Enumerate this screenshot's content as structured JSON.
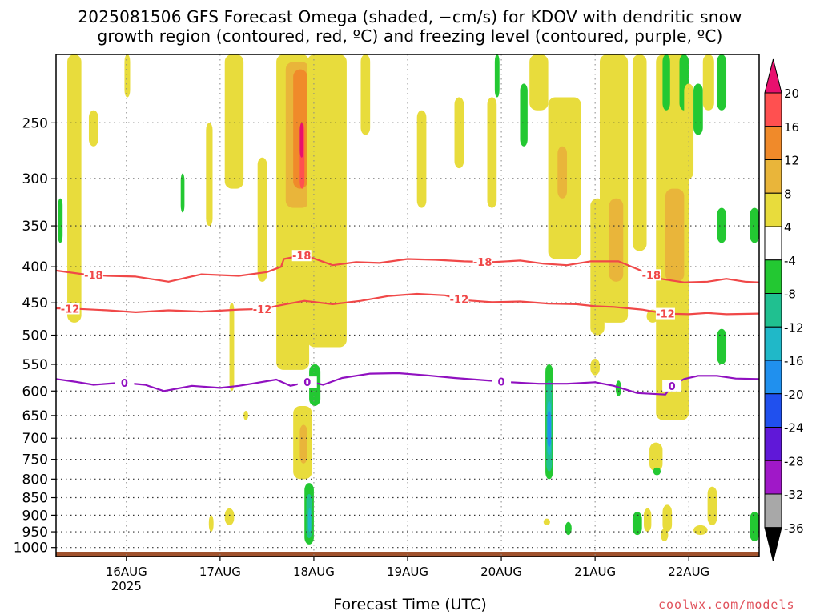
{
  "title_line1": "2025081506 GFS Forecast Omega (shaded, −cm/s) for KDOV with dendritic snow",
  "title_line2": "growth region (contoured, red, ºC) and freezing level (contoured, purple, ºC)",
  "credit": "coolwx.com/models",
  "chart_data": {
    "type": "heatmap",
    "title": "2025081506 GFS Forecast Omega (shaded, −cm/s) for KDOV with dendritic snow growth region (contoured, red, ºC) and freezing level (contoured, purple, ºC)",
    "xlabel": "Forecast Time (UTC)",
    "ylabel": "",
    "x_ticks": [
      {
        "day": 16,
        "label": "16AUG",
        "sublabel": "2025"
      },
      {
        "day": 17,
        "label": "17AUG",
        "sublabel": ""
      },
      {
        "day": 18,
        "label": "18AUG",
        "sublabel": ""
      },
      {
        "day": 19,
        "label": "19AUG",
        "sublabel": ""
      },
      {
        "day": 20,
        "label": "20AUG",
        "sublabel": ""
      },
      {
        "day": 21,
        "label": "21AUG",
        "sublabel": ""
      },
      {
        "day": 22,
        "label": "22AUG",
        "sublabel": ""
      }
    ],
    "x_range_days": [
      15.25,
      22.75
    ],
    "y_axis": "pressure (hPa), log scale, inverted",
    "y_ticks": [
      250,
      300,
      350,
      400,
      450,
      500,
      550,
      600,
      650,
      700,
      750,
      800,
      850,
      900,
      950,
      1000
    ],
    "y_range": [
      200,
      1030
    ],
    "grid": "dotted at each pressure tick and each day",
    "colorbar": {
      "labels": [
        "20",
        "16",
        "12",
        "8",
        "4",
        "-4",
        "-8",
        "-12",
        "-16",
        "-20",
        "-24",
        "-28",
        "-32",
        "-36"
      ],
      "colors": [
        "#ff5050",
        "#f08a2a",
        "#e9b53a",
        "#e8dc3c",
        "#ffffff",
        "#23c832",
        "#20c090",
        "#20b8c8",
        "#2090ee",
        "#2050ee",
        "#6018d8",
        "#a018c8",
        "#a8a8a8"
      ],
      "top_arrow_color": "#e8106e",
      "bottom_arrow_color": "#000000"
    },
    "omega_features": [
      {
        "day0": 15.37,
        "day1": 15.52,
        "p0": 200,
        "p1": 480,
        "value": 5
      },
      {
        "day0": 15.27,
        "day1": 15.32,
        "p0": 320,
        "p1": 370,
        "value": -6
      },
      {
        "day0": 15.6,
        "day1": 15.7,
        "p0": 240,
        "p1": 270,
        "value": 5
      },
      {
        "day0": 15.98,
        "day1": 16.04,
        "p0": 200,
        "p1": 230,
        "value": 5
      },
      {
        "day0": 16.58,
        "day1": 16.62,
        "p0": 295,
        "p1": 335,
        "value": -6
      },
      {
        "day0": 16.85,
        "day1": 16.92,
        "p0": 250,
        "p1": 350,
        "value": 5
      },
      {
        "day0": 17.05,
        "day1": 17.25,
        "p0": 200,
        "p1": 310,
        "value": 5
      },
      {
        "day0": 17.1,
        "day1": 17.15,
        "p0": 450,
        "p1": 600,
        "value": 5
      },
      {
        "day0": 17.05,
        "day1": 17.15,
        "p0": 880,
        "p1": 930,
        "value": 5
      },
      {
        "day0": 16.88,
        "day1": 16.93,
        "p0": 900,
        "p1": 950,
        "value": 5
      },
      {
        "day0": 17.4,
        "day1": 17.5,
        "p0": 280,
        "p1": 420,
        "value": 5
      },
      {
        "day0": 17.6,
        "day1": 17.95,
        "p0": 200,
        "p1": 560,
        "value": 5
      },
      {
        "day0": 17.7,
        "day1": 17.95,
        "p0": 205,
        "p1": 330,
        "value": 9
      },
      {
        "day0": 17.78,
        "day1": 17.93,
        "p0": 210,
        "p1": 310,
        "value": 13
      },
      {
        "day0": 17.85,
        "day1": 17.9,
        "p0": 250,
        "p1": 310,
        "value": 17
      },
      {
        "day0": 17.85,
        "day1": 17.89,
        "p0": 250,
        "p1": 280,
        "value": 21
      },
      {
        "day0": 17.93,
        "day1": 18.35,
        "p0": 200,
        "p1": 520,
        "value": 5
      },
      {
        "day0": 17.95,
        "day1": 18.07,
        "p0": 550,
        "p1": 630,
        "value": -6
      },
      {
        "day0": 17.78,
        "day1": 17.98,
        "p0": 630,
        "p1": 800,
        "value": 5
      },
      {
        "day0": 17.85,
        "day1": 17.93,
        "p0": 670,
        "p1": 760,
        "value": 9
      },
      {
        "day0": 17.9,
        "day1": 18.0,
        "p0": 810,
        "p1": 990,
        "value": -6
      },
      {
        "day0": 17.92,
        "day1": 17.98,
        "p0": 840,
        "p1": 970,
        "value": -10
      },
      {
        "day0": 17.94,
        "day1": 17.97,
        "p0": 880,
        "p1": 950,
        "value": -14
      },
      {
        "day0": 18.5,
        "day1": 18.6,
        "p0": 200,
        "p1": 260,
        "value": 5
      },
      {
        "day0": 19.1,
        "day1": 19.2,
        "p0": 240,
        "p1": 330,
        "value": 5
      },
      {
        "day0": 19.5,
        "day1": 19.6,
        "p0": 230,
        "p1": 290,
        "value": 5
      },
      {
        "day0": 19.85,
        "day1": 19.95,
        "p0": 230,
        "p1": 330,
        "value": 5
      },
      {
        "day0": 19.93,
        "day1": 19.98,
        "p0": 200,
        "p1": 230,
        "value": -6
      },
      {
        "day0": 20.2,
        "day1": 20.28,
        "p0": 220,
        "p1": 270,
        "value": -6
      },
      {
        "day0": 20.3,
        "day1": 20.5,
        "p0": 200,
        "p1": 240,
        "value": 5
      },
      {
        "day0": 20.47,
        "day1": 20.55,
        "p0": 550,
        "p1": 800,
        "value": -6
      },
      {
        "day0": 20.48,
        "day1": 20.54,
        "p0": 580,
        "p1": 780,
        "value": -10
      },
      {
        "day0": 20.49,
        "day1": 20.53,
        "p0": 620,
        "p1": 740,
        "value": -14
      },
      {
        "day0": 20.49,
        "day1": 20.53,
        "p0": 640,
        "p1": 720,
        "value": -18
      },
      {
        "day0": 20.45,
        "day1": 20.52,
        "p0": 910,
        "p1": 930,
        "value": 5
      },
      {
        "day0": 20.68,
        "day1": 20.75,
        "p0": 920,
        "p1": 960,
        "value": -6
      },
      {
        "day0": 20.5,
        "day1": 20.85,
        "p0": 230,
        "p1": 390,
        "value": 5
      },
      {
        "day0": 20.6,
        "day1": 20.7,
        "p0": 270,
        "p1": 320,
        "value": 9
      },
      {
        "day0": 20.95,
        "day1": 21.1,
        "p0": 320,
        "p1": 500,
        "value": 5
      },
      {
        "day0": 20.95,
        "day1": 21.05,
        "p0": 540,
        "p1": 570,
        "value": 5
      },
      {
        "day0": 21.05,
        "day1": 21.35,
        "p0": 200,
        "p1": 480,
        "value": 5
      },
      {
        "day0": 21.15,
        "day1": 21.3,
        "p0": 320,
        "p1": 420,
        "value": 9
      },
      {
        "day0": 21.22,
        "day1": 21.28,
        "p0": 580,
        "p1": 610,
        "value": -6
      },
      {
        "day0": 21.4,
        "day1": 21.55,
        "p0": 200,
        "p1": 380,
        "value": 5
      },
      {
        "day0": 21.55,
        "day1": 21.68,
        "p0": 460,
        "p1": 480,
        "value": 5
      },
      {
        "day0": 21.58,
        "day1": 21.72,
        "p0": 710,
        "p1": 780,
        "value": 5
      },
      {
        "day0": 21.62,
        "day1": 21.7,
        "p0": 770,
        "p1": 790,
        "value": -6
      },
      {
        "day0": 21.4,
        "day1": 21.5,
        "p0": 890,
        "p1": 960,
        "value": -6
      },
      {
        "day0": 21.52,
        "day1": 21.6,
        "p0": 880,
        "p1": 950,
        "value": 5
      },
      {
        "day0": 21.65,
        "day1": 22.0,
        "p0": 200,
        "p1": 660,
        "value": 5
      },
      {
        "day0": 21.75,
        "day1": 21.95,
        "p0": 310,
        "p1": 420,
        "value": 9
      },
      {
        "day0": 21.72,
        "day1": 21.8,
        "p0": 200,
        "p1": 240,
        "value": -6
      },
      {
        "day0": 21.9,
        "day1": 22.0,
        "p0": 200,
        "p1": 240,
        "value": -6
      },
      {
        "day0": 21.95,
        "day1": 22.05,
        "p0": 220,
        "p1": 300,
        "value": 5
      },
      {
        "day0": 22.05,
        "day1": 22.15,
        "p0": 220,
        "p1": 260,
        "value": -6
      },
      {
        "day0": 22.15,
        "day1": 22.27,
        "p0": 200,
        "p1": 240,
        "value": 5
      },
      {
        "day0": 22.3,
        "day1": 22.4,
        "p0": 200,
        "p1": 240,
        "value": -6
      },
      {
        "day0": 22.3,
        "day1": 22.4,
        "p0": 330,
        "p1": 370,
        "value": -6
      },
      {
        "day0": 22.3,
        "day1": 22.4,
        "p0": 490,
        "p1": 550,
        "value": -6
      },
      {
        "day0": 22.2,
        "day1": 22.3,
        "p0": 820,
        "p1": 930,
        "value": 5
      },
      {
        "day0": 22.05,
        "day1": 22.2,
        "p0": 930,
        "p1": 960,
        "value": 5
      },
      {
        "day0": 21.7,
        "day1": 21.78,
        "p0": 940,
        "p1": 980,
        "value": 5
      },
      {
        "day0": 22.65,
        "day1": 22.75,
        "p0": 330,
        "p1": 370,
        "value": -6
      },
      {
        "day0": 22.65,
        "day1": 22.75,
        "p0": 890,
        "p1": 980,
        "value": -6
      },
      {
        "day0": 21.72,
        "day1": 21.82,
        "p0": 870,
        "p1": 950,
        "value": 5
      },
      {
        "day0": 17.25,
        "day1": 17.3,
        "p0": 640,
        "p1": 660,
        "value": 5
      }
    ],
    "contours": [
      {
        "name": "-18",
        "color": "#f04848",
        "labels_at_days": [
          15.65,
          17.87,
          19.8,
          21.6
        ],
        "points": [
          [
            15.25,
            405
          ],
          [
            15.55,
            410
          ],
          [
            15.8,
            412
          ],
          [
            16.1,
            413
          ],
          [
            16.45,
            420
          ],
          [
            16.8,
            410
          ],
          [
            17.2,
            412
          ],
          [
            17.5,
            407
          ],
          [
            17.65,
            400
          ],
          [
            17.68,
            390
          ],
          [
            17.9,
            385
          ],
          [
            18.2,
            398
          ],
          [
            18.45,
            394
          ],
          [
            18.7,
            395
          ],
          [
            19.0,
            390
          ],
          [
            19.3,
            391
          ],
          [
            19.6,
            393
          ],
          [
            19.9,
            394
          ],
          [
            20.2,
            392
          ],
          [
            20.45,
            396
          ],
          [
            20.7,
            398
          ],
          [
            20.95,
            393
          ],
          [
            21.25,
            393
          ],
          [
            21.45,
            403
          ],
          [
            21.7,
            416
          ],
          [
            21.95,
            421
          ],
          [
            22.2,
            420
          ],
          [
            22.4,
            416
          ],
          [
            22.6,
            420
          ],
          [
            22.75,
            421
          ]
        ]
      },
      {
        "name": "-12",
        "color": "#f04848",
        "labels_at_days": [
          15.4,
          17.45,
          19.55,
          21.75
        ],
        "points": [
          [
            15.25,
            458
          ],
          [
            15.5,
            459
          ],
          [
            15.8,
            461
          ],
          [
            16.1,
            464
          ],
          [
            16.45,
            461
          ],
          [
            16.8,
            463
          ],
          [
            17.2,
            460
          ],
          [
            17.45,
            459
          ],
          [
            17.7,
            452
          ],
          [
            17.9,
            447
          ],
          [
            18.2,
            452
          ],
          [
            18.5,
            447
          ],
          [
            18.8,
            440
          ],
          [
            19.1,
            437
          ],
          [
            19.4,
            439
          ],
          [
            19.6,
            446
          ],
          [
            19.9,
            449
          ],
          [
            20.2,
            448
          ],
          [
            20.5,
            451
          ],
          [
            20.8,
            452
          ],
          [
            21.0,
            455
          ],
          [
            21.2,
            456
          ],
          [
            21.5,
            460
          ],
          [
            21.75,
            466
          ],
          [
            22.0,
            467
          ],
          [
            22.2,
            465
          ],
          [
            22.4,
            467
          ],
          [
            22.75,
            466
          ]
        ]
      },
      {
        "name": "0",
        "color": "#9010c0",
        "labels_at_days": [
          15.98,
          17.93,
          20.0,
          21.82
        ],
        "points": [
          [
            15.25,
            577
          ],
          [
            15.45,
            582
          ],
          [
            15.65,
            588
          ],
          [
            15.95,
            584
          ],
          [
            16.2,
            588
          ],
          [
            16.4,
            600
          ],
          [
            16.7,
            590
          ],
          [
            17.0,
            594
          ],
          [
            17.2,
            590
          ],
          [
            17.4,
            584
          ],
          [
            17.6,
            578
          ],
          [
            17.75,
            590
          ],
          [
            17.95,
            582
          ],
          [
            18.1,
            588
          ],
          [
            18.3,
            575
          ],
          [
            18.6,
            567
          ],
          [
            18.9,
            566
          ],
          [
            19.2,
            570
          ],
          [
            19.5,
            575
          ],
          [
            19.8,
            579
          ],
          [
            20.1,
            583
          ],
          [
            20.4,
            586
          ],
          [
            20.7,
            586
          ],
          [
            21.0,
            583
          ],
          [
            21.2,
            590
          ],
          [
            21.45,
            604
          ],
          [
            21.75,
            607
          ],
          [
            21.82,
            590
          ],
          [
            21.95,
            577
          ],
          [
            22.1,
            571
          ],
          [
            22.3,
            571
          ],
          [
            22.5,
            576
          ],
          [
            22.75,
            577
          ]
        ]
      }
    ],
    "surface_terrain": {
      "from_p": 1014,
      "color": "#a0522d"
    }
  }
}
